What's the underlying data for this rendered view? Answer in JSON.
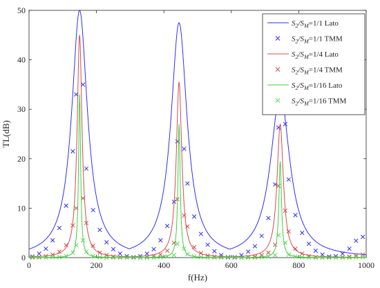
{
  "chart_data": {
    "type": "line",
    "xlabel": "f(Hz)",
    "ylabel": "TL(dB)",
    "xlim": [
      0,
      1000
    ],
    "ylim": [
      0,
      50
    ],
    "xticks": [
      0,
      200,
      400,
      600,
      800,
      1000
    ],
    "yticks": [
      0,
      10,
      20,
      30,
      40,
      50
    ],
    "grid": false,
    "legend_position": "top-right",
    "series": [
      {
        "name": "S2/SM=1/1 Lato",
        "style": "line",
        "color": "#2c2cff",
        "peak_frequencies": [
          150,
          445,
          745
        ],
        "peak_values": [
          50,
          47.5,
          33
        ],
        "ratio": 1
      },
      {
        "name": "S2/SM=1/1 TMM",
        "style": "marker-x",
        "color": "#2c2cff",
        "x": [
          10,
          30,
          50,
          70,
          90,
          110,
          130,
          140,
          160,
          170,
          190,
          210,
          230,
          250,
          270,
          290,
          310,
          330,
          350,
          370,
          390,
          410,
          430,
          440,
          460,
          470,
          490,
          510,
          530,
          550,
          570,
          590,
          610,
          630,
          650,
          670,
          690,
          710,
          730,
          740,
          760,
          770,
          790,
          810,
          830,
          850,
          870,
          890,
          910,
          930,
          950,
          970,
          990
        ],
        "y": [
          0.2,
          0.8,
          1.8,
          3.5,
          6.0,
          10.5,
          21.5,
          33.0,
          35.0,
          18.0,
          9.6,
          5.6,
          3.1,
          1.7,
          0.8,
          0.3,
          0.1,
          0.3,
          0.8,
          1.7,
          3.5,
          6.4,
          11.3,
          23.5,
          22.0,
          15.0,
          8.3,
          4.8,
          2.6,
          1.3,
          0.5,
          0.1,
          0.1,
          0.5,
          1.2,
          2.3,
          4.4,
          8.0,
          14.8,
          26.3,
          27.0,
          15.8,
          8.6,
          5.0,
          2.8,
          1.4,
          0.6,
          0.2,
          0.3,
          0.8,
          1.8,
          3.4,
          4.2
        ]
      },
      {
        "name": "S2/SM=1/4 Lato",
        "style": "line",
        "color": "#d34b4b",
        "peak_frequencies": [
          150,
          445,
          745
        ],
        "peak_values": [
          45,
          35.5,
          27
        ],
        "ratio": 0.25
      },
      {
        "name": "S2/SM=1/4 TMM",
        "style": "marker-x",
        "color": "#d34b4b",
        "x": [
          10,
          30,
          50,
          70,
          90,
          110,
          130,
          140,
          160,
          170,
          190,
          210,
          230,
          250,
          270,
          290,
          310,
          330,
          350,
          370,
          390,
          410,
          430,
          440,
          460,
          470,
          490,
          510,
          530,
          550,
          570,
          590,
          610,
          630,
          650,
          670,
          690,
          710,
          730,
          740,
          760,
          770,
          790,
          810,
          830,
          850,
          870,
          890,
          910,
          930,
          950,
          970,
          990
        ],
        "y": [
          0.1,
          0.1,
          0.3,
          0.6,
          1.2,
          2.5,
          6.5,
          10.0,
          12.0,
          7.0,
          2.4,
          1.0,
          0.5,
          0.2,
          0.1,
          0.0,
          0.0,
          0.0,
          0.1,
          0.3,
          0.6,
          1.4,
          3.0,
          11.8,
          8.5,
          6.3,
          2.1,
          0.9,
          0.4,
          0.2,
          0.1,
          0.0,
          0.0,
          0.0,
          0.1,
          0.2,
          0.5,
          1.0,
          2.6,
          14.5,
          9.5,
          5.3,
          1.8,
          0.8,
          0.3,
          0.1,
          0.0,
          0.0,
          0.0,
          0.1,
          0.2,
          0.4,
          0.6
        ]
      },
      {
        "name": "S2/SM=1/16 Lato",
        "style": "line",
        "color": "#3fcf3f",
        "peak_frequencies": [
          150,
          445,
          745
        ],
        "peak_values": [
          33,
          27,
          19.5
        ],
        "ratio": 0.0625
      },
      {
        "name": "S2/SM=1/16 TMM",
        "style": "marker-x",
        "color": "#4be04b",
        "x": [
          10,
          30,
          50,
          70,
          90,
          110,
          130,
          140,
          160,
          170,
          190,
          210,
          230,
          250,
          270,
          290,
          310,
          330,
          350,
          370,
          390,
          410,
          430,
          440,
          460,
          470,
          490,
          510,
          530,
          550,
          570,
          590,
          610,
          630,
          650,
          670,
          690,
          710,
          730,
          740,
          760,
          770,
          790,
          810,
          830,
          850,
          870,
          890,
          910,
          930,
          950,
          970,
          990
        ],
        "y": [
          0.0,
          0.0,
          0.0,
          0.1,
          0.1,
          0.3,
          1.0,
          2.5,
          3.5,
          1.2,
          0.3,
          0.1,
          0.0,
          0.0,
          0.0,
          0.0,
          0.0,
          0.0,
          0.0,
          0.0,
          0.1,
          0.2,
          0.5,
          2.8,
          1.8,
          0.7,
          0.2,
          0.1,
          0.0,
          0.0,
          0.0,
          0.0,
          0.0,
          0.0,
          0.0,
          0.0,
          0.1,
          0.2,
          0.5,
          4.5,
          3.0,
          0.6,
          0.2,
          0.1,
          0.0,
          0.0,
          0.0,
          0.0,
          0.0,
          0.0,
          0.0,
          0.1,
          0.1
        ]
      }
    ]
  },
  "legend": {
    "entries": [
      {
        "pre": "S",
        "sub1": "2",
        "mid": "/S",
        "sub2": "M",
        "post": "=1/1 Lato"
      },
      {
        "pre": "S",
        "sub1": "2",
        "mid": "/S",
        "sub2": "M",
        "post": "=1/1 TMM"
      },
      {
        "pre": "S",
        "sub1": "2",
        "mid": "/S",
        "sub2": "M",
        "post": "=1/4 Lato"
      },
      {
        "pre": "S",
        "sub1": "2",
        "mid": "/S",
        "sub2": "M",
        "post": "=1/4 TMM"
      },
      {
        "pre": "S",
        "sub1": "2",
        "mid": "/S",
        "sub2": "M",
        "post": "=1/16 Lato"
      },
      {
        "pre": "S",
        "sub1": "2",
        "mid": "/S",
        "sub2": "M",
        "post": "=1/16 TMM"
      }
    ]
  }
}
